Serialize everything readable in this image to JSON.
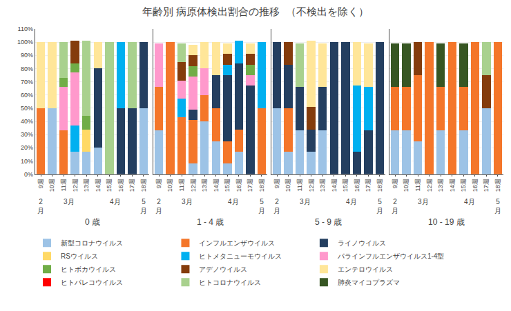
{
  "chart_data": {
    "type": "bar",
    "title": "年齢別 病原体検出割合の推移  （不検出を除く）",
    "stacked": true,
    "grid": true,
    "legend": "bottom",
    "categories": [
      "9週",
      "10週",
      "11週",
      "12週",
      "13週",
      "14週",
      "15週",
      "16週",
      "17週",
      "18週"
    ],
    "month_groups": [
      {
        "label": "2\n月",
        "categories": [
          "9週"
        ]
      },
      {
        "label": "3月",
        "categories": [
          "10週",
          "11週",
          "12週",
          "13週"
        ]
      },
      {
        "label": "4月",
        "categories": [
          "14週",
          "15週",
          "16週",
          "17週"
        ]
      },
      {
        "label": "5\n月",
        "categories": [
          "18週"
        ]
      }
    ],
    "ylim": [
      0,
      110
    ],
    "yticks": [
      {
        "value": 0,
        "label": "0%"
      },
      {
        "value": 10,
        "label": "10%"
      },
      {
        "value": 20,
        "label": "20%"
      },
      {
        "value": 30,
        "label": "30%"
      },
      {
        "value": 40,
        "label": "40%"
      },
      {
        "value": 50,
        "label": "50%"
      },
      {
        "value": 60,
        "label": "60%"
      },
      {
        "value": 70,
        "label": "70%"
      },
      {
        "value": 80,
        "label": "80%"
      },
      {
        "value": 90,
        "label": "90%"
      },
      {
        "value": 100,
        "label": "100%"
      },
      {
        "value": 110,
        "label": "110%"
      }
    ],
    "panels": [
      {
        "label": "0 歳",
        "series": [
          {
            "name": "新型コロナウイルス",
            "color": "#9DC3E6",
            "values": [
              0,
              50,
              0,
              17,
              17,
              20,
              0,
              0,
              0,
              50
            ]
          },
          {
            "name": "インフルエンザウイルス",
            "color": "#F4762A",
            "values": [
              50,
              0,
              33,
              0,
              0,
              0,
              0,
              0,
              0,
              0
            ]
          },
          {
            "name": "ライノウイルス",
            "color": "#243F60",
            "values": [
              0,
              0,
              0,
              0,
              0,
              60,
              0,
              50,
              50,
              50
            ]
          },
          {
            "name": "RSウイルス",
            "color": "#FFD966",
            "values": [
              0,
              0,
              0,
              0,
              17,
              0,
              0,
              0,
              0,
              0
            ]
          },
          {
            "name": "ヒトメタニューモウイルス",
            "color": "#00B0F0",
            "values": [
              0,
              0,
              0,
              20,
              0,
              0,
              0,
              50,
              0,
              0
            ]
          },
          {
            "name": "パラインフルエンザウイルス1-4型",
            "color": "#FF99CC",
            "values": [
              0,
              0,
              33,
              40,
              0,
              0,
              0,
              0,
              0,
              0
            ]
          },
          {
            "name": "ヒトボカウイルス",
            "color": "#70AD47",
            "values": [
              0,
              0,
              7,
              7,
              10,
              0,
              0,
              0,
              0,
              0
            ]
          },
          {
            "name": "アデノウイルス",
            "color": "#843C0C",
            "values": [
              0,
              0,
              0,
              17,
              0,
              0,
              0,
              0,
              0,
              0
            ]
          },
          {
            "name": "エンテロウイルス",
            "color": "#FFE699",
            "values": [
              50,
              50,
              0,
              0,
              0,
              20,
              0,
              0,
              0,
              0
            ]
          },
          {
            "name": "ヒトパレコウイルス",
            "color": "#FF0000",
            "values": [
              0,
              0,
              0,
              0,
              0,
              0,
              0,
              0,
              0,
              0
            ]
          },
          {
            "name": "ヒトコロナウイルス",
            "color": "#A9D18E",
            "values": [
              0,
              0,
              27,
              0,
              57,
              0,
              100,
              0,
              50,
              0
            ]
          },
          {
            "name": "肺炎マイコプラズマ",
            "color": "#375623",
            "values": [
              0,
              0,
              0,
              0,
              0,
              0,
              0,
              0,
              0,
              0
            ]
          }
        ]
      },
      {
        "label": "1 - 4 歳",
        "series": [
          {
            "name": "新型コロナウイルス",
            "color": "#9DC3E6",
            "values": [
              33,
              0,
              0,
              8,
              40,
              25,
              8,
              17,
              0,
              0
            ]
          },
          {
            "name": "インフルエンザウイルス",
            "color": "#F4762A",
            "values": [
              33,
              100,
              43,
              33,
              20,
              25,
              17,
              17,
              0,
              50
            ]
          },
          {
            "name": "ライノウイルス",
            "color": "#243F60",
            "values": [
              0,
              0,
              0,
              8,
              0,
              25,
              50,
              50,
              67,
              0
            ]
          },
          {
            "name": "RSウイルス",
            "color": "#FFD966",
            "values": [
              0,
              0,
              0,
              0,
              0,
              0,
              0,
              0,
              0,
              0
            ]
          },
          {
            "name": "ヒトメタニューモウイルス",
            "color": "#00B0F0",
            "values": [
              0,
              0,
              14,
              0,
              0,
              0,
              8,
              17,
              0,
              50
            ]
          },
          {
            "name": "パラインフルエンザウイルス1-4型",
            "color": "#FF99CC",
            "values": [
              33,
              0,
              14,
              25,
              20,
              0,
              0,
              0,
              8,
              0
            ]
          },
          {
            "name": "ヒトボカウイルス",
            "color": "#70AD47",
            "values": [
              0,
              0,
              0,
              8,
              0,
              0,
              0,
              0,
              8,
              0
            ]
          },
          {
            "name": "アデノウイルス",
            "color": "#843C0C",
            "values": [
              0,
              0,
              14,
              8,
              0,
              0,
              8,
              0,
              8,
              0
            ]
          },
          {
            "name": "エンテロウイルス",
            "color": "#FFE699",
            "values": [
              0,
              0,
              0,
              8,
              20,
              25,
              8,
              0,
              8,
              0
            ]
          },
          {
            "name": "ヒトパレコウイルス",
            "color": "#FF0000",
            "values": [
              0,
              0,
              0,
              0,
              0,
              0,
              0,
              0,
              0,
              0
            ]
          },
          {
            "name": "ヒトコロナウイルス",
            "color": "#A9D18E",
            "values": [
              0,
              0,
              14,
              0,
              0,
              0,
              0,
              0,
              0,
              0
            ]
          },
          {
            "name": "肺炎マイコプラズマ",
            "color": "#375623",
            "values": [
              0,
              0,
              0,
              0,
              0,
              0,
              0,
              0,
              0,
              0
            ]
          }
        ]
      },
      {
        "label": "5 - 9 歳",
        "series": [
          {
            "name": "新型コロナウイルス",
            "color": "#9DC3E6",
            "values": [
              50,
              17,
              33,
              17,
              33,
              0,
              0,
              0,
              0,
              0
            ]
          },
          {
            "name": "インフルエンザウイルス",
            "color": "#F4762A",
            "values": [
              0,
              33,
              0,
              0,
              0,
              0,
              0,
              0,
              0,
              0
            ]
          },
          {
            "name": "ライノウイルス",
            "color": "#243F60",
            "values": [
              50,
              33,
              33,
              17,
              33,
              100,
              100,
              17,
              33,
              100
            ]
          },
          {
            "name": "RSウイルス",
            "color": "#FFD966",
            "values": [
              0,
              0,
              0,
              0,
              0,
              0,
              0,
              0,
              0,
              0
            ]
          },
          {
            "name": "ヒトメタニューモウイルス",
            "color": "#00B0F0",
            "values": [
              0,
              0,
              0,
              0,
              0,
              0,
              0,
              50,
              33,
              0
            ]
          },
          {
            "name": "パラインフルエンザウイルス1-4型",
            "color": "#FF99CC",
            "values": [
              0,
              0,
              0,
              0,
              0,
              0,
              0,
              0,
              0,
              0
            ]
          },
          {
            "name": "ヒトボカウイルス",
            "color": "#70AD47",
            "values": [
              0,
              0,
              0,
              0,
              0,
              0,
              0,
              0,
              0,
              0
            ]
          },
          {
            "name": "アデノウイルス",
            "color": "#843C0C",
            "values": [
              0,
              17,
              0,
              17,
              0,
              0,
              0,
              0,
              0,
              0
            ]
          },
          {
            "name": "エンテロウイルス",
            "color": "#FFE699",
            "values": [
              0,
              0,
              0,
              50,
              33,
              0,
              0,
              33,
              33,
              0
            ]
          },
          {
            "name": "ヒトパレコウイルス",
            "color": "#FF0000",
            "values": [
              0,
              0,
              0,
              0,
              0,
              0,
              0,
              0,
              0,
              0
            ]
          },
          {
            "name": "ヒトコロナウイルス",
            "color": "#A9D18E",
            "values": [
              0,
              0,
              33,
              0,
              0,
              0,
              0,
              0,
              0,
              0
            ]
          },
          {
            "name": "肺炎マイコプラズマ",
            "color": "#375623",
            "values": [
              0,
              0,
              0,
              0,
              0,
              0,
              0,
              0,
              0,
              0
            ]
          }
        ]
      },
      {
        "label": "10 - 19 歳",
        "series": [
          {
            "name": "新型コロナウイルス",
            "color": "#9DC3E6",
            "values": [
              33,
              33,
              25,
              0,
              33,
              0,
              33,
              0,
              50,
              0
            ]
          },
          {
            "name": "インフルエンザウイルス",
            "color": "#F4762A",
            "values": [
              33,
              33,
              50,
              100,
              33,
              100,
              33,
              100,
              0,
              100
            ]
          },
          {
            "name": "ライノウイルス",
            "color": "#243F60",
            "values": [
              0,
              0,
              0,
              0,
              0,
              0,
              0,
              0,
              0,
              0
            ]
          },
          {
            "name": "RSウイルス",
            "color": "#FFD966",
            "values": [
              0,
              0,
              0,
              0,
              0,
              0,
              0,
              0,
              0,
              0
            ]
          },
          {
            "name": "ヒトメタニューモウイルス",
            "color": "#00B0F0",
            "values": [
              0,
              0,
              0,
              0,
              0,
              0,
              0,
              0,
              0,
              0
            ]
          },
          {
            "name": "パラインフルエンザウイルス1-4型",
            "color": "#FF99CC",
            "values": [
              0,
              0,
              0,
              0,
              0,
              0,
              0,
              0,
              0,
              0
            ]
          },
          {
            "name": "ヒトボカウイルス",
            "color": "#70AD47",
            "values": [
              0,
              0,
              0,
              0,
              0,
              0,
              0,
              0,
              0,
              0
            ]
          },
          {
            "name": "アデノウイルス",
            "color": "#843C0C",
            "values": [
              0,
              0,
              25,
              0,
              0,
              0,
              0,
              0,
              25,
              0
            ]
          },
          {
            "name": "エンテロウイルス",
            "color": "#FFE699",
            "values": [
              0,
              0,
              0,
              0,
              0,
              0,
              0,
              0,
              0,
              0
            ]
          },
          {
            "name": "ヒトパレコウイルス",
            "color": "#FF0000",
            "values": [
              0,
              0,
              0,
              0,
              0,
              0,
              0,
              0,
              0,
              0
            ]
          },
          {
            "name": "ヒトコロナウイルス",
            "color": "#A9D18E",
            "values": [
              0,
              0,
              0,
              0,
              0,
              0,
              0,
              0,
              25,
              0
            ]
          },
          {
            "name": "肺炎マイコプラズマ",
            "color": "#375623",
            "values": [
              33,
              33,
              0,
              0,
              33,
              0,
              33,
              0,
              0,
              0
            ]
          }
        ]
      }
    ]
  }
}
